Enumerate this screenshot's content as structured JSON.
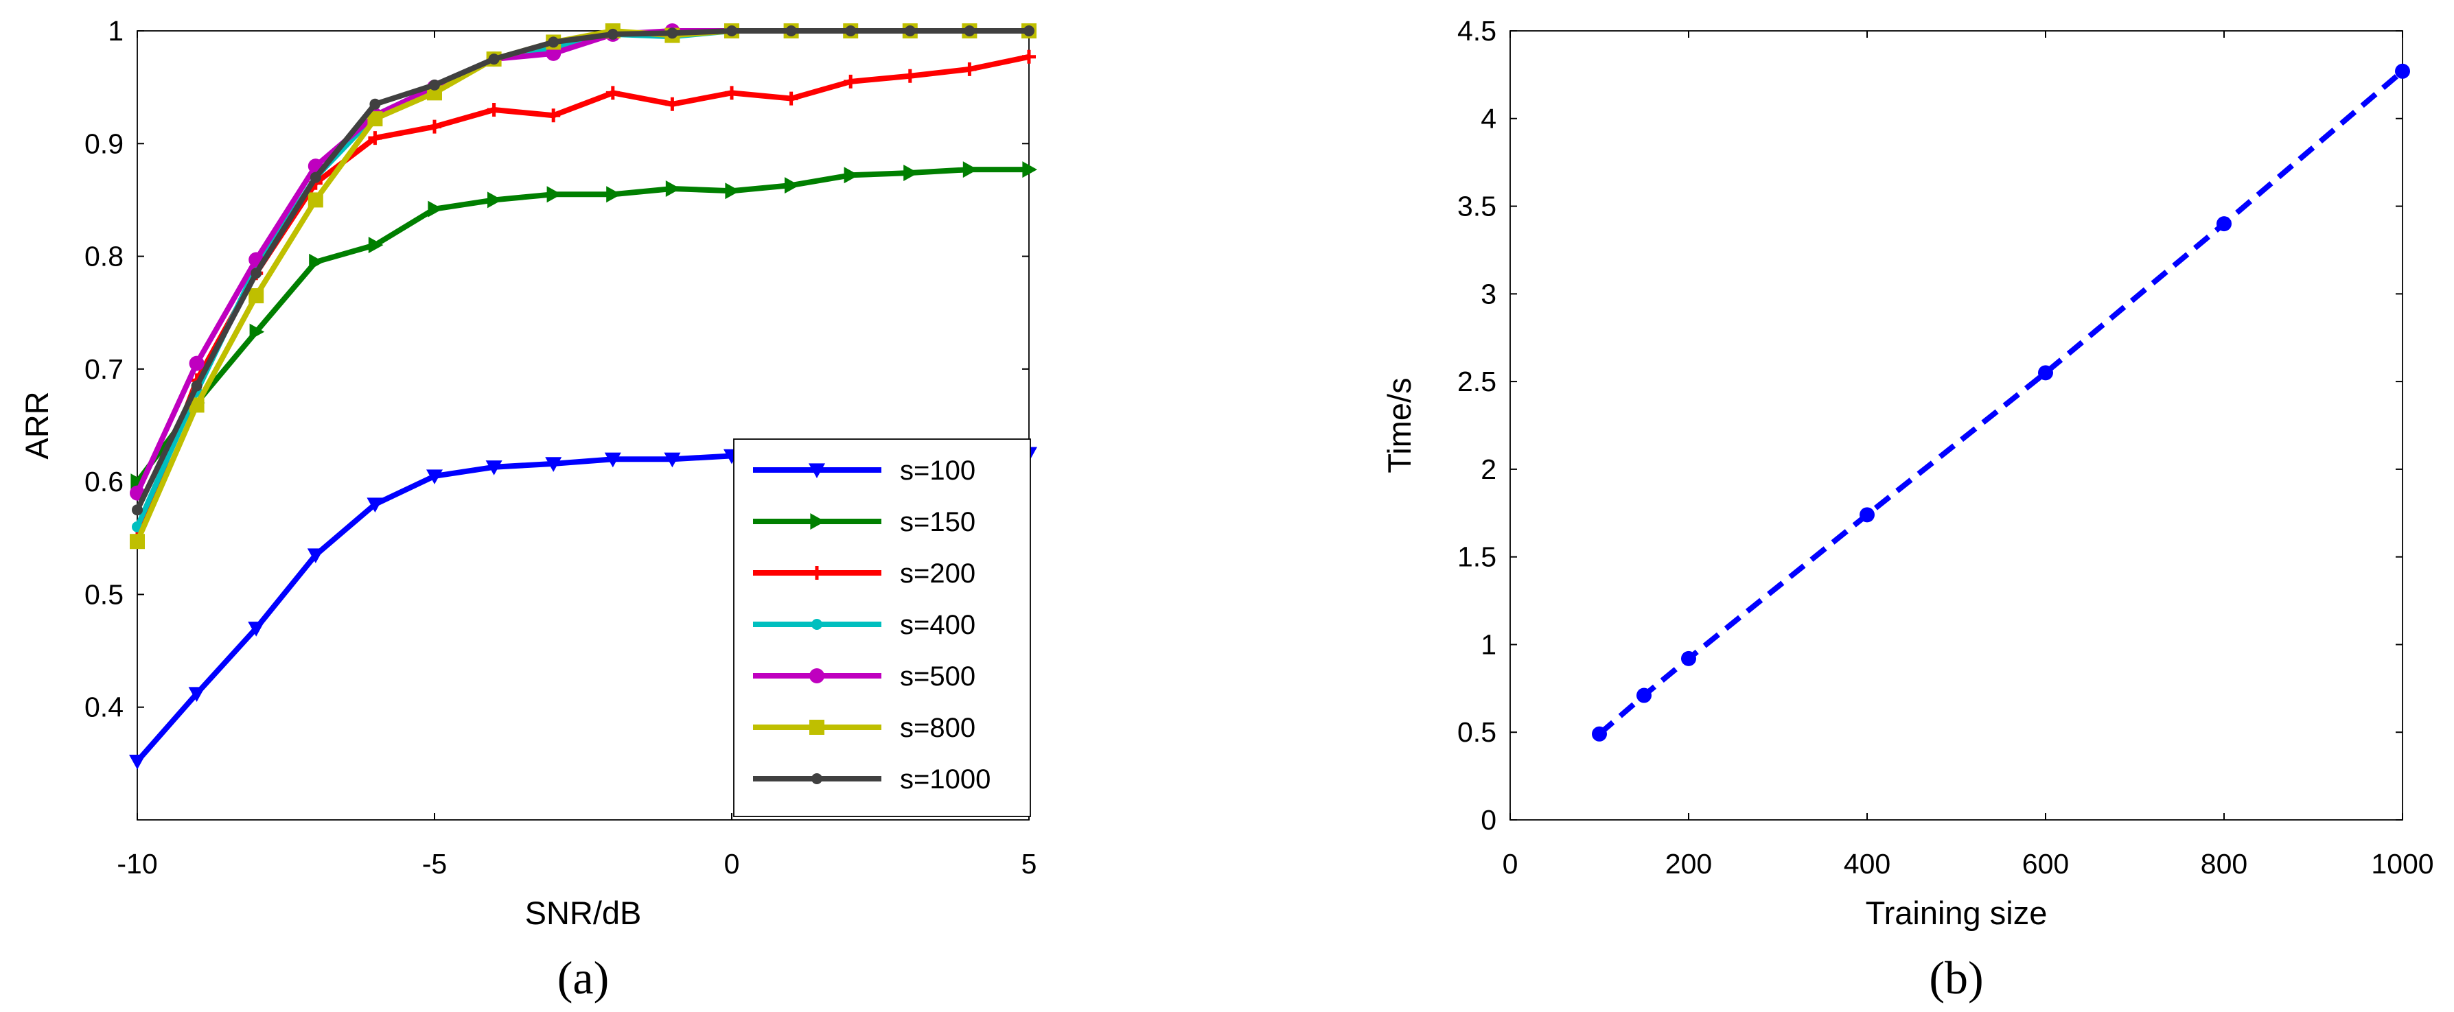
{
  "chart_data": [
    {
      "type": "line",
      "panel_label": "(a)",
      "xlabel": "SNR/dB",
      "ylabel": "ARR",
      "xlim": [
        -10,
        5
      ],
      "ylim": [
        0.3,
        1.0
      ],
      "xticks": [
        -10,
        -5,
        0,
        5
      ],
      "yticks": [
        0.4,
        0.5,
        0.6,
        0.7,
        0.8,
        0.9,
        1
      ],
      "grid": false,
      "legend_position": "bottom-right",
      "x": [
        -10,
        -9,
        -8,
        -7,
        -6,
        -5,
        -4,
        -3,
        -2,
        -1,
        0,
        1,
        2,
        3,
        4,
        5
      ],
      "series": [
        {
          "name": "s=100",
          "color": "#0000ff",
          "marker": "triangle-down",
          "values": [
            0.352,
            0.412,
            0.47,
            0.535,
            0.58,
            0.605,
            0.613,
            0.616,
            0.62,
            0.62,
            0.623,
            0.624,
            0.624,
            0.625,
            0.625,
            0.625
          ]
        },
        {
          "name": "s=150",
          "color": "#007f00",
          "marker": "triangle-right",
          "values": [
            0.6,
            0.67,
            0.733,
            0.795,
            0.81,
            0.842,
            0.85,
            0.855,
            0.855,
            0.86,
            0.858,
            0.863,
            0.872,
            0.874,
            0.877,
            0.877
          ]
        },
        {
          "name": "s=200",
          "color": "#ff0000",
          "marker": "plus",
          "values": [
            0.55,
            0.69,
            0.785,
            0.865,
            0.905,
            0.915,
            0.93,
            0.925,
            0.945,
            0.935,
            0.945,
            0.94,
            0.955,
            0.96,
            0.966,
            0.977
          ]
        },
        {
          "name": "s=400",
          "color": "#00bfbf",
          "marker": "circle-small",
          "values": [
            0.56,
            0.68,
            0.79,
            0.87,
            0.925,
            0.95,
            0.975,
            0.985,
            0.997,
            0.995,
            1.0,
            1.0,
            1.0,
            1.0,
            1.0,
            1.0
          ]
        },
        {
          "name": "s=500",
          "color": "#bf00bf",
          "marker": "circle",
          "values": [
            0.59,
            0.705,
            0.797,
            0.88,
            0.925,
            0.95,
            0.975,
            0.98,
            0.997,
            1.0,
            1.0,
            1.0,
            1.0,
            1.0,
            1.0,
            1.0
          ]
        },
        {
          "name": "s=800",
          "color": "#bfbf00",
          "marker": "square",
          "values": [
            0.547,
            0.668,
            0.765,
            0.85,
            0.922,
            0.945,
            0.975,
            0.99,
            1.0,
            0.996,
            1.0,
            1.0,
            1.0,
            1.0,
            1.0,
            1.0
          ]
        },
        {
          "name": "s=1000",
          "color": "#404040",
          "marker": "circle-small",
          "values": [
            0.575,
            0.685,
            0.785,
            0.87,
            0.935,
            0.952,
            0.975,
            0.99,
            0.997,
            0.998,
            1.0,
            1.0,
            1.0,
            1.0,
            1.0,
            1.0
          ]
        }
      ]
    },
    {
      "type": "line",
      "panel_label": "(b)",
      "xlabel": "Training size",
      "ylabel": "Time/s",
      "xlim": [
        0,
        1000
      ],
      "ylim": [
        0,
        4.5
      ],
      "xticks": [
        0,
        200,
        400,
        600,
        800,
        1000
      ],
      "yticks": [
        0,
        0.5,
        1,
        1.5,
        2,
        2.5,
        3,
        3.5,
        4,
        4.5
      ],
      "grid": false,
      "series": [
        {
          "name": "time",
          "color": "#0000ff",
          "marker": "circle",
          "line_style": "dashed",
          "x": [
            100,
            150,
            200,
            400,
            600,
            800,
            1000
          ],
          "values": [
            0.49,
            0.71,
            0.92,
            1.74,
            2.55,
            3.4,
            4.27
          ]
        }
      ]
    }
  ]
}
